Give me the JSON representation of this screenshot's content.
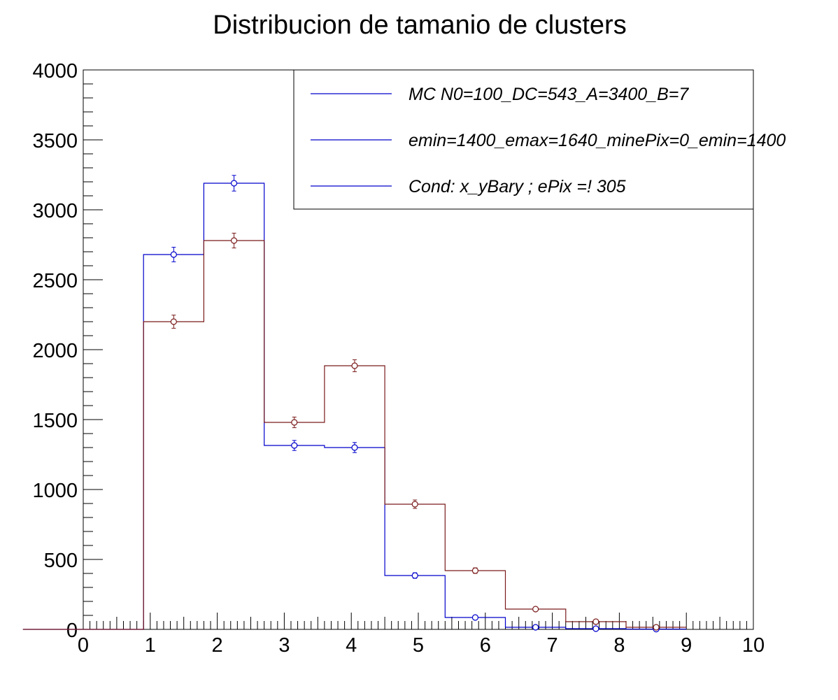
{
  "chart_data": {
    "type": "histogram",
    "title": "Distribucion de tamanio de clusters",
    "xlabel": "",
    "ylabel": "",
    "xlim": [
      0,
      10
    ],
    "ylim": [
      0,
      4000
    ],
    "grid": false,
    "legend_position": "top-right",
    "x_ticks": [
      "0",
      "1",
      "2",
      "3",
      "4",
      "5",
      "6",
      "7",
      "8",
      "9",
      "10"
    ],
    "y_ticks": [
      "0",
      "500",
      "1000",
      "1500",
      "2000",
      "2500",
      "3000",
      "3500",
      "4000"
    ],
    "bin_edges": [
      -0.9,
      0.9,
      1.8,
      2.7,
      3.6,
      4.5,
      5.4,
      6.3,
      7.2,
      8.1,
      9.0
    ],
    "series": [
      {
        "color": "#0000cc",
        "counts": [
          0,
          2680,
          3190,
          1315,
          1300,
          385,
          85,
          15,
          5,
          2
        ],
        "errors": [
          0,
          52,
          56,
          36,
          36,
          20,
          9,
          4,
          2,
          1
        ]
      },
      {
        "color": "#7a1a1a",
        "counts": [
          0,
          2200,
          2780,
          1480,
          1885,
          895,
          420,
          145,
          55,
          15
        ],
        "errors": [
          0,
          47,
          53,
          38,
          43,
          30,
          20,
          12,
          7,
          4
        ]
      }
    ],
    "legend_entries": [
      {
        "label": "MC N0=100_DC=543_A=3400_B=7",
        "color": "#0000cc"
      },
      {
        "label": "emin=1400_emax=1640_minePix=0_emin=1400",
        "color": "#0000cc"
      },
      {
        "label": "Cond: x_yBary ; ePix =! 305",
        "color": "#0000cc"
      }
    ]
  }
}
